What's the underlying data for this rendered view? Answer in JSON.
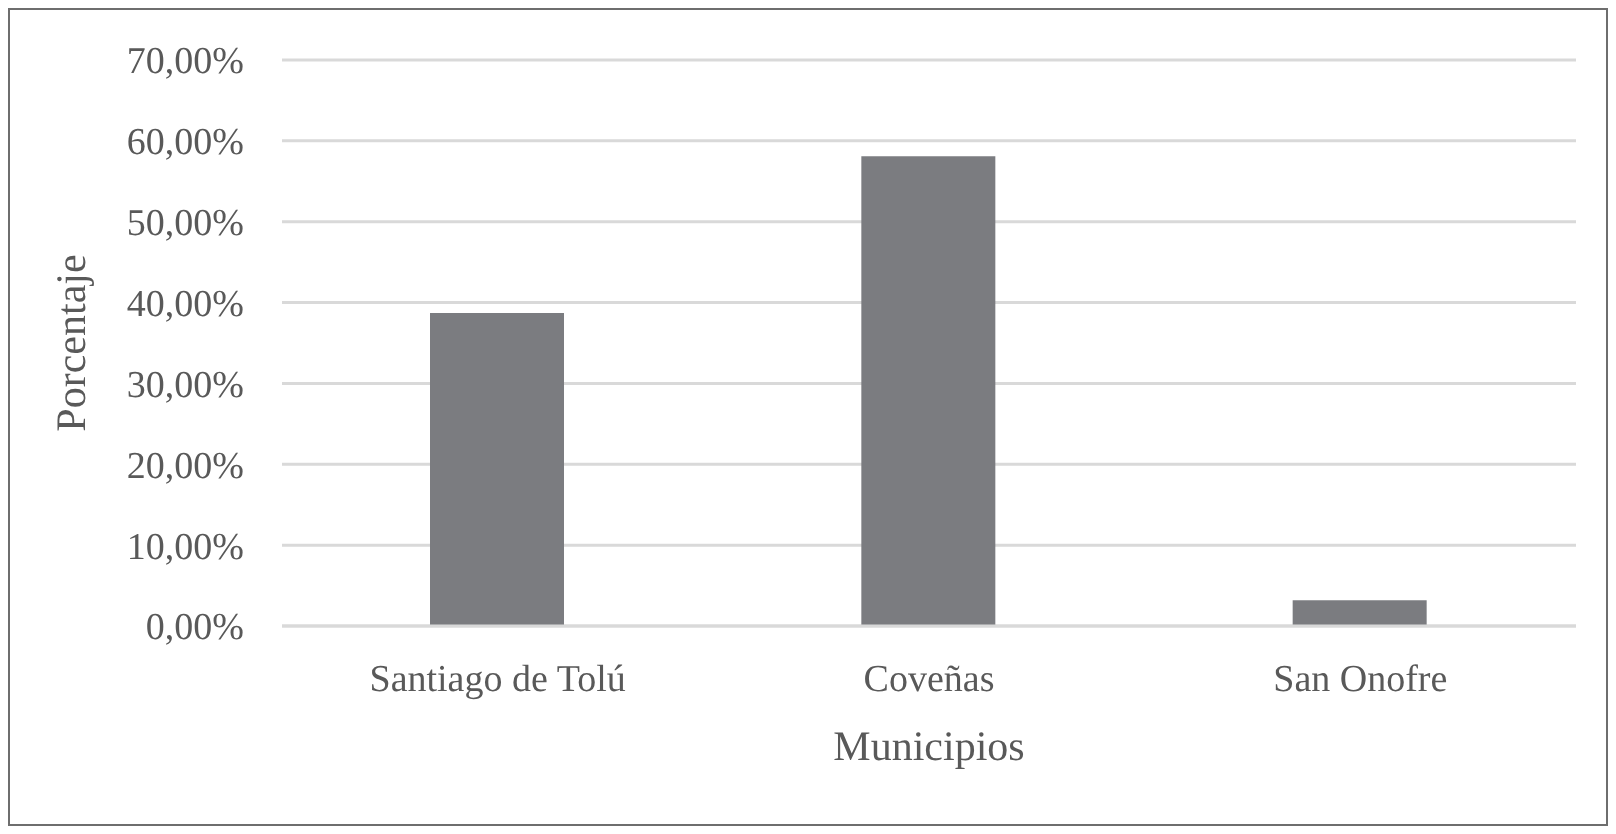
{
  "chart_data": {
    "type": "bar",
    "xlabel": "Municipios",
    "ylabel": "Porcentaje",
    "categories": [
      "Santiago de Tolú",
      "Coveñas",
      "San Onofre"
    ],
    "values": [
      38.7,
      58.1,
      3.2
    ],
    "color": "#7b7c80",
    "ylim": [
      0,
      70
    ],
    "yticks": [
      {
        "value": 0,
        "label": "0,00%"
      },
      {
        "value": 10,
        "label": "10,00%"
      },
      {
        "value": 20,
        "label": "20,00%"
      },
      {
        "value": 30,
        "label": "30,00%"
      },
      {
        "value": 40,
        "label": "40,00%"
      },
      {
        "value": 50,
        "label": "50,00%"
      },
      {
        "value": 60,
        "label": "60,00%"
      },
      {
        "value": 70,
        "label": "70,00%"
      }
    ],
    "grid": "y"
  }
}
